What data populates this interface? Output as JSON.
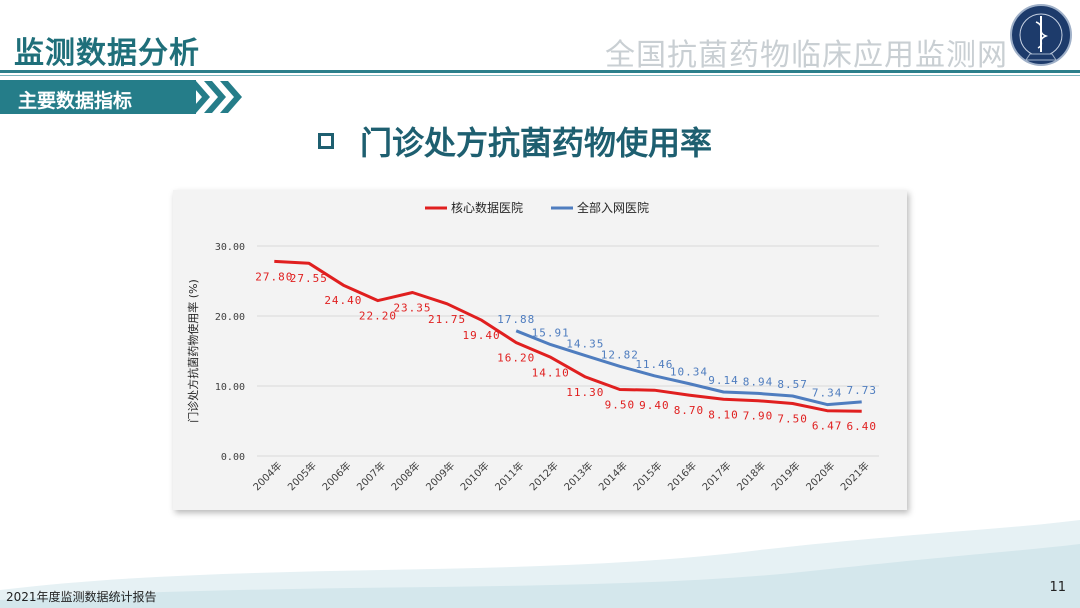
{
  "header": {
    "title": "监测数据分析",
    "org_name": "全国抗菌药物临床应用监测网"
  },
  "section": {
    "label": "主要数据指标"
  },
  "slide_title": "门诊处方抗菌药物使用率",
  "footer": {
    "report": "2021年度监测数据统计报告",
    "page": "11"
  },
  "colors": {
    "core": "#e01f1f",
    "all": "#4f7dbf",
    "accent": "#257d89"
  },
  "chart_data": {
    "type": "line",
    "ylabel": "门诊处方抗菌药物使用率 (%)",
    "ylim": [
      0,
      30
    ],
    "yticks": [
      "0.00",
      "10.00",
      "20.00",
      "30.00"
    ],
    "categories": [
      "2004年",
      "2005年",
      "2006年",
      "2007年",
      "2008年",
      "2009年",
      "2010年",
      "2011年",
      "2012年",
      "2013年",
      "2014年",
      "2015年",
      "2016年",
      "2017年",
      "2018年",
      "2019年",
      "2020年",
      "2021年"
    ],
    "legend_position": "top",
    "series": [
      {
        "name": "核心数据医院",
        "color": "#e01f1f",
        "values": [
          27.8,
          27.55,
          24.4,
          22.2,
          23.35,
          21.75,
          19.4,
          16.2,
          14.1,
          11.3,
          9.5,
          9.4,
          8.7,
          8.1,
          7.9,
          7.5,
          6.47,
          6.4
        ],
        "labels": [
          "27.80",
          "27.55",
          "24.40",
          "22.20",
          "23.35",
          "21.75",
          "19.40",
          "16.20",
          "14.10",
          "11.30",
          "9.50",
          "9.40",
          "8.70",
          "8.10",
          "7.90",
          "7.50",
          "6.47",
          "6.40"
        ]
      },
      {
        "name": "全部入网医院",
        "color": "#4f7dbf",
        "values": [
          null,
          null,
          null,
          null,
          null,
          null,
          null,
          17.88,
          15.91,
          14.35,
          12.82,
          11.46,
          10.34,
          9.14,
          8.94,
          8.57,
          7.34,
          7.73
        ],
        "labels": [
          null,
          null,
          null,
          null,
          null,
          null,
          null,
          "17.88",
          "15.91",
          "14.35",
          "12.82",
          "11.46",
          "10.34",
          "9.14",
          "8.94",
          "8.57",
          "7.34",
          "7.73"
        ]
      }
    ]
  }
}
